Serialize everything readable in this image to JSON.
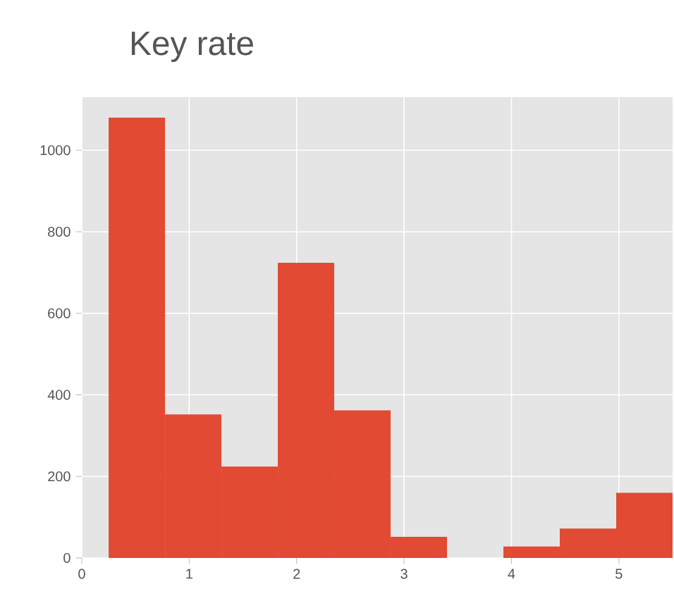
{
  "chart_data": {
    "type": "histogram",
    "title": "Key rate",
    "bins": [
      0.25,
      0.775,
      1.3,
      1.825,
      2.35,
      2.875,
      3.4,
      3.925,
      4.45,
      4.975,
      5.5
    ],
    "values": [
      1080,
      352,
      224,
      724,
      362,
      52,
      0,
      28,
      72,
      160
    ],
    "color": "#e24a33",
    "xlim": [
      0,
      5.5
    ],
    "ylim": [
      0,
      1130
    ],
    "xticks": [
      0,
      1,
      2,
      3,
      4,
      5
    ],
    "yticks": [
      0,
      200,
      400,
      600,
      800,
      1000
    ],
    "grid": true
  }
}
